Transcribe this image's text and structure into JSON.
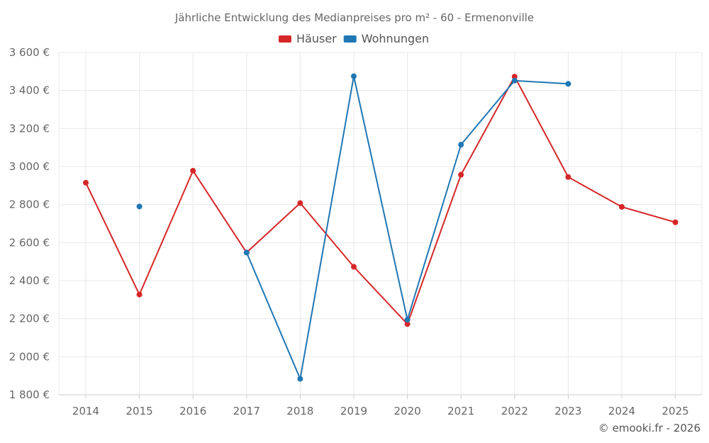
{
  "chart_data": {
    "type": "line",
    "title": "Jährliche Entwicklung des Medianpreises pro m² - 60 - Ermenonville",
    "categories": [
      "2014",
      "2015",
      "2016",
      "2017",
      "2018",
      "2019",
      "2020",
      "2021",
      "2022",
      "2023",
      "2024",
      "2025"
    ],
    "series": [
      {
        "name": "Häuser",
        "color": "#d62728",
        "values": [
          2915,
          2327,
          2978,
          2548,
          2808,
          2473,
          2172,
          2957,
          3473,
          2945,
          2788,
          2707
        ]
      },
      {
        "name": "Wohnungen",
        "color": "#1f77b4",
        "values": [
          null,
          2790,
          null,
          2548,
          1884,
          3475,
          2195,
          3115,
          3452,
          3435,
          null,
          null
        ]
      }
    ],
    "yticks": [
      1800,
      2000,
      2200,
      2400,
      2600,
      2800,
      3000,
      3200,
      3400,
      3600
    ],
    "ytick_labels": [
      "1 800 €",
      "2 000 €",
      "2 200 €",
      "2 400 €",
      "2 600 €",
      "2 800 €",
      "3 000 €",
      "3 200 €",
      "3 400 €",
      "3 600 €"
    ],
    "ylim": [
      1800,
      3600
    ],
    "xlabel": "",
    "ylabel": "",
    "grid": true,
    "legend": "top-center"
  },
  "credit": "© emooki.fr - 2026"
}
